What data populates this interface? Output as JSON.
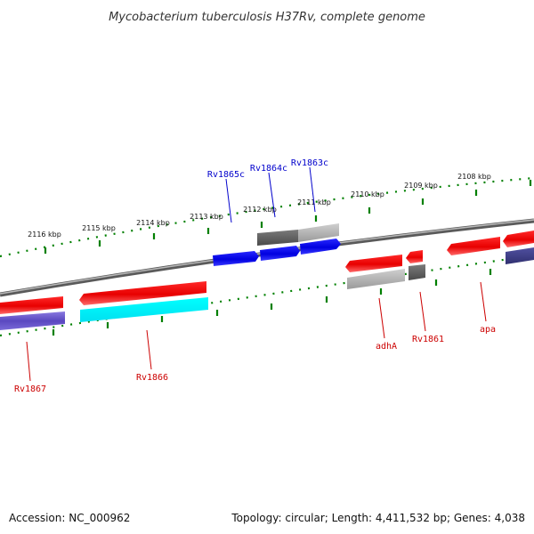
{
  "title": "Mycobacterium tuberculosis H37Rv, complete genome",
  "footer": {
    "accession": "Accession: NC_000962",
    "topology": "Topology: circular; Length: 4,411,532 bp; Genes: 4,038"
  },
  "ticks": [
    "2116 kbp",
    "2115 kbp",
    "2114 kbp",
    "2113 kbp",
    "2112 kbp",
    "2111 kbp",
    "2110 kbp",
    "2109 kbp",
    "2108 kbp"
  ],
  "genes_top": [
    {
      "name": "Rv1865c",
      "color": "#0000cc"
    },
    {
      "name": "Rv1864c",
      "color": "#0000cc"
    },
    {
      "name": "Rv1863c",
      "color": "#0000cc"
    }
  ],
  "genes_bottom": [
    {
      "name": "Rv1867",
      "color": "#cc0000"
    },
    {
      "name": "Rv1866",
      "color": "#cc0000"
    },
    {
      "name": "adhA",
      "color": "#cc0000"
    },
    {
      "name": "Rv1861",
      "color": "#cc0000"
    },
    {
      "name": "apa",
      "color": "#cc0000"
    }
  ],
  "colors": {
    "forward_gene": "#ff0000",
    "reverse_gene": "#0000ff",
    "backbone": "#808080",
    "tick": "#008000",
    "cyan_feature": "#00ffff",
    "purple_feature": "#6a5acd",
    "gray_feature": "#a9a9a9"
  }
}
